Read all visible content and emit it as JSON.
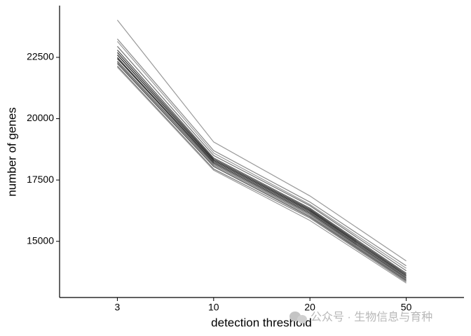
{
  "chart_data": {
    "type": "line",
    "x_label": "detection threshold",
    "y_label": "number of genes",
    "categories": [
      "3",
      "10",
      "20",
      "50"
    ],
    "ylim": [
      12710,
      24610
    ],
    "yticks": [
      15000,
      17500,
      20000,
      22500
    ],
    "series": [
      {
        "color": "#999999",
        "values": [
          24020,
          19050,
          16850,
          14200
        ]
      },
      {
        "color": "#888888",
        "values": [
          23250,
          18700,
          16600,
          14000
        ]
      },
      {
        "color": "#999999",
        "values": [
          23150,
          18600,
          16500,
          13900
        ]
      },
      {
        "color": "#777777",
        "values": [
          22950,
          18500,
          16450,
          13800
        ]
      },
      {
        "color": "#555555",
        "values": [
          22800,
          18400,
          16350,
          13700
        ]
      },
      {
        "color": "#333333",
        "values": [
          22700,
          18350,
          16300,
          13650
        ]
      },
      {
        "color": "#222222",
        "values": [
          22600,
          18300,
          16250,
          13600
        ]
      },
      {
        "color": "#444444",
        "values": [
          22500,
          18250,
          16200,
          13550
        ]
      },
      {
        "color": "#333333",
        "values": [
          22450,
          18200,
          16150,
          13500
        ]
      },
      {
        "color": "#666666",
        "values": [
          22350,
          18150,
          16100,
          13450
        ]
      },
      {
        "color": "#888888",
        "values": [
          22300,
          18100,
          16050,
          13420
        ]
      },
      {
        "color": "#555555",
        "values": [
          22250,
          18050,
          16000,
          13400
        ]
      },
      {
        "color": "#777777",
        "values": [
          22150,
          17950,
          15950,
          13350
        ]
      },
      {
        "color": "#999999",
        "values": [
          22100,
          17900,
          15850,
          13300
        ]
      }
    ]
  },
  "watermark": "公众号 · 生物信息与育种"
}
